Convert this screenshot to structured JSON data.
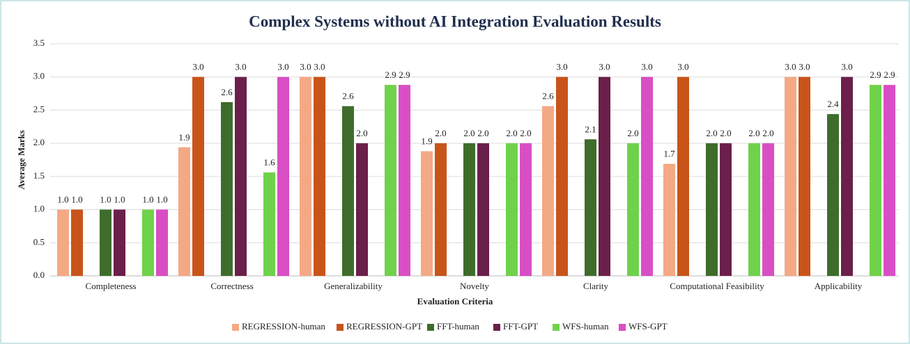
{
  "chart_data": {
    "type": "bar",
    "title": "Complex Systems without AI Integration Evaluation Results",
    "x_label": "Evaluation Criteria",
    "y_label": "Average Marks",
    "categories": [
      "Completeness",
      "Correctness",
      "Generalizability",
      "Novelty",
      "Clarity",
      "Computational Feasibility",
      "Applicability"
    ],
    "series": [
      {
        "name": "REGRESSION-human",
        "color": "#f4a984",
        "values": [
          1,
          1.94,
          3,
          1.88,
          2.56,
          1.69,
          3
        ],
        "value_labels": [
          "1.0",
          "1.9",
          "3.0",
          "1.9",
          "2.6",
          "1.7",
          "3.0"
        ]
      },
      {
        "name": "REGRESSION-GPT",
        "color": "#c8541a",
        "values": [
          1,
          3,
          3,
          2,
          3,
          3,
          3
        ],
        "value_labels": [
          "1.0",
          "3.0",
          "3.0",
          "2.0",
          "3.0",
          "3.0",
          "3.0"
        ]
      },
      {
        "name": "FFT-human",
        "color": "#3e6d2b",
        "values": [
          1,
          2.62,
          2.56,
          2,
          2.06,
          2,
          2.44
        ],
        "value_labels": [
          "1.0",
          "2.6",
          "2.6",
          "2.0",
          "2.1",
          "2.0",
          "2.4"
        ]
      },
      {
        "name": "FFT-GPT",
        "color": "#6b1f4b",
        "values": [
          1,
          3,
          2,
          2,
          3,
          2,
          3
        ],
        "value_labels": [
          "1.0",
          "3.0",
          "2.0",
          "2.0",
          "3.0",
          "2.0",
          "3.0"
        ]
      },
      {
        "name": "WFS-human",
        "color": "#6fd24a",
        "values": [
          1,
          1.56,
          2.88,
          2,
          2,
          2,
          2.88
        ],
        "value_labels": [
          "1.0",
          "1.6",
          "2.9",
          "2.0",
          "2.0",
          "2.0",
          "2.9"
        ]
      },
      {
        "name": "WFS-GPT",
        "color": "#d94ec4",
        "values": [
          1,
          3,
          2.88,
          2,
          3,
          2,
          2.88
        ],
        "value_labels": [
          "1.0",
          "3.0",
          "2.9",
          "2.0",
          "3.0",
          "2.0",
          "2.9"
        ]
      }
    ],
    "ylim": [
      0,
      3.5
    ],
    "yticks": [
      {
        "value": 0,
        "label": "0.0"
      },
      0.5,
      {
        "value": 1,
        "label": "1.0"
      },
      1.5,
      {
        "value": 2,
        "label": "2.0"
      },
      2.5,
      {
        "value": 3,
        "label": "3.0"
      },
      3.5
    ],
    "grid": true,
    "legend": "bottom"
  }
}
